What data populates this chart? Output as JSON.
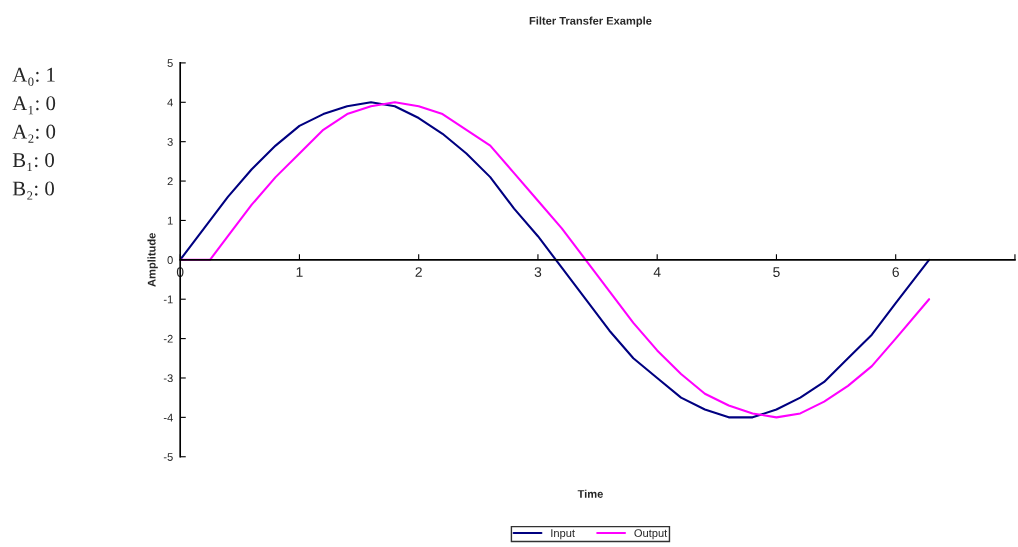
{
  "chart_data": {
    "type": "line",
    "title": "Filter Transfer Example",
    "xlabel": "Time",
    "ylabel": "Amplitude",
    "xlim": [
      0,
      7
    ],
    "xticks": [
      0,
      1,
      2,
      3,
      4,
      5,
      6,
      {
        "value": 7,
        "label": null
      }
    ],
    "ylim": [
      -5,
      5
    ],
    "yticks": [
      -5,
      -4,
      -3,
      -2,
      -1,
      0,
      1,
      2,
      3,
      4,
      5
    ],
    "grid": false,
    "legend": "bottom",
    "marker": "none",
    "line_style": "solid",
    "annotations": [
      "A₀: 1",
      "A₁: 0",
      "A₂: 0",
      "B₁: 0",
      "B₂: 0"
    ],
    "series": [
      {
        "name": "Input",
        "color": "#000080",
        "x": [
          0,
          0.2,
          0.4,
          0.6,
          0.8,
          1.0,
          1.2,
          1.4,
          1.6,
          1.8,
          2.0,
          2.2,
          2.4,
          2.6,
          2.8,
          3.0,
          3.2,
          3.4,
          3.6,
          3.8,
          4.0,
          4.2,
          4.4,
          4.6,
          4.8,
          5.0,
          5.2,
          5.4,
          5.6,
          5.8,
          6.0,
          6.28
        ],
        "values": [
          0,
          0.8,
          1.6,
          2.3,
          2.9,
          3.4,
          3.7,
          3.9,
          4.0,
          3.9,
          3.6,
          3.2,
          2.7,
          2.1,
          1.3,
          0.6,
          -0.2,
          -1.0,
          -1.8,
          -2.5,
          -3.0,
          -3.5,
          -3.8,
          -4.0,
          -4.0,
          -3.8,
          -3.5,
          -3.1,
          -2.5,
          -1.9,
          -1.1,
          0
        ]
      },
      {
        "name": "Output",
        "color": "#ff00ff",
        "x": [
          0,
          0.2,
          0.25,
          0.4,
          0.6,
          0.8,
          1.0,
          1.2,
          1.4,
          1.6,
          1.8,
          2.0,
          2.2,
          2.4,
          2.6,
          2.8,
          3.0,
          3.2,
          3.4,
          3.6,
          3.8,
          4.0,
          4.2,
          4.4,
          4.6,
          4.8,
          5.0,
          5.2,
          5.4,
          5.6,
          5.8,
          6.0,
          6.28
        ],
        "values": [
          0,
          0,
          0,
          0.6,
          1.4,
          2.1,
          2.7,
          3.3,
          3.7,
          3.9,
          4.0,
          3.9,
          3.7,
          3.3,
          2.9,
          2.2,
          1.5,
          0.8,
          0,
          -0.8,
          -1.6,
          -2.3,
          -2.9,
          -3.4,
          -3.7,
          -3.9,
          -4.0,
          -3.9,
          -3.6,
          -3.2,
          -2.7,
          -2.0,
          -1.0
        ]
      }
    ]
  }
}
